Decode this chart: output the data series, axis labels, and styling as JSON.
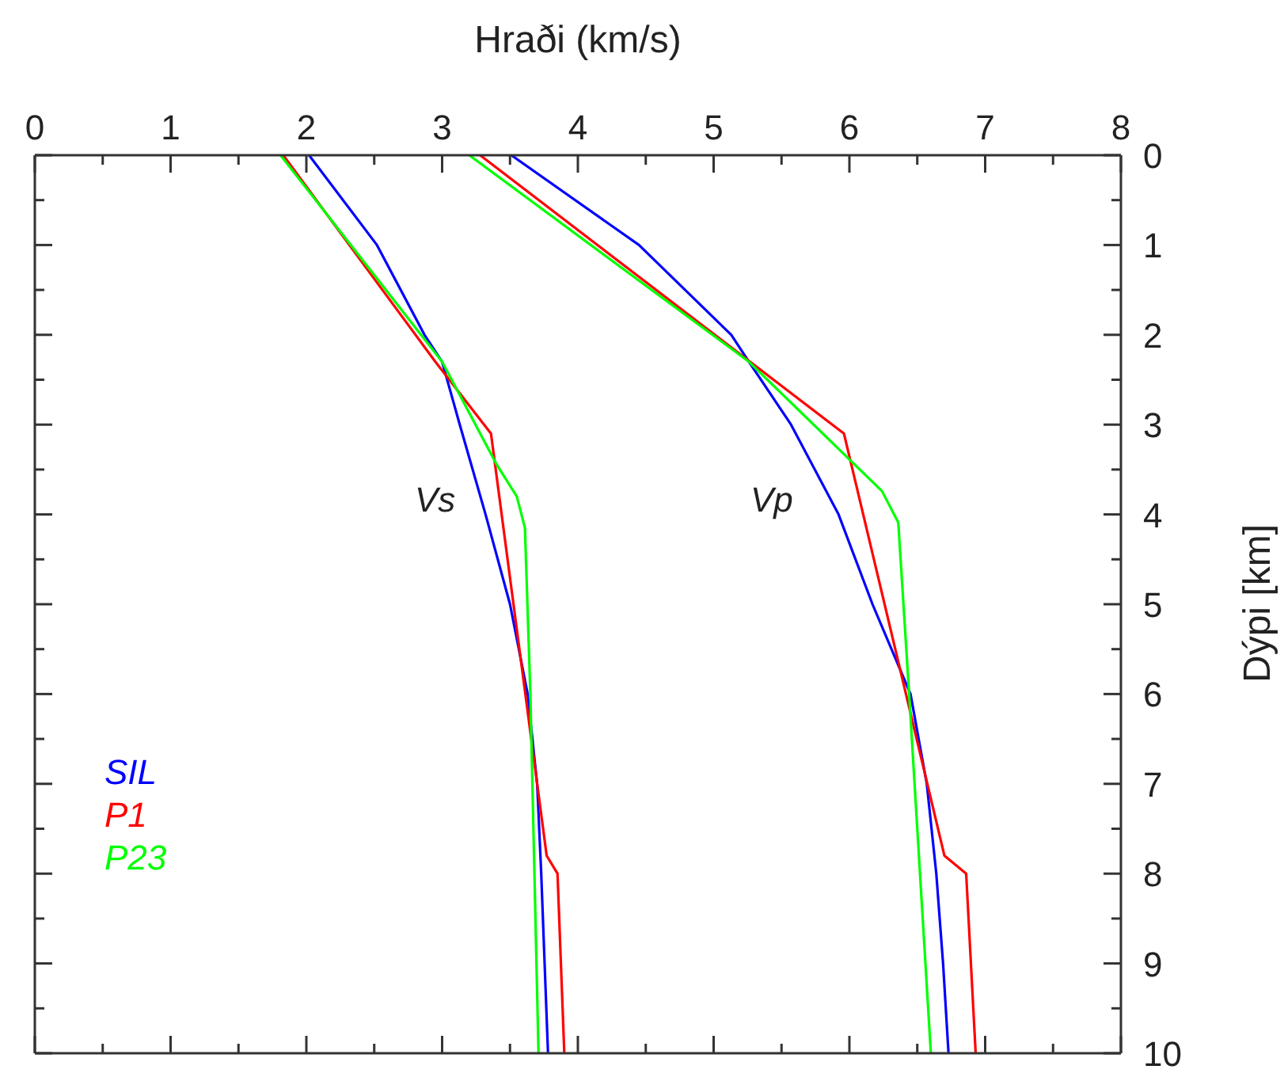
{
  "chart_data": {
    "type": "line",
    "xlabel": "Hraði (km/s)",
    "ylabel": "Dýpi [km]",
    "xlim": [
      0,
      8
    ],
    "ylim": [
      10,
      0
    ],
    "xticks": [
      0,
      {
        "value": 0.5,
        "label": null
      },
      1,
      {
        "value": 1.5,
        "label": null
      },
      2,
      {
        "value": 2.5,
        "label": null
      },
      3,
      {
        "value": 3.5,
        "label": null
      },
      4,
      {
        "value": 4.5,
        "label": null
      },
      5,
      {
        "value": 5.5,
        "label": null
      },
      6,
      {
        "value": 6.5,
        "label": null
      },
      7,
      {
        "value": 7.5,
        "label": null
      },
      8
    ],
    "yticks": [
      0,
      {
        "value": 0.5,
        "label": null
      },
      1,
      {
        "value": 1.5,
        "label": null
      },
      2,
      {
        "value": 2.5,
        "label": null
      },
      3,
      {
        "value": 3.5,
        "label": null
      },
      4,
      {
        "value": 4.5,
        "label": null
      },
      5,
      {
        "value": 5.5,
        "label": null
      },
      6,
      {
        "value": 6.5,
        "label": null
      },
      7,
      {
        "value": 7.5,
        "label": null
      },
      8,
      {
        "value": 8.5,
        "label": null
      },
      9,
      {
        "value": 9.5,
        "label": null
      },
      10
    ],
    "tick_labels": "xy",
    "legend": "bottom left",
    "series": [
      {
        "name": "SIL",
        "color": "#0000ff",
        "x": [
          2.02,
          2.52,
          2.87,
          3.0,
          3.13,
          3.32,
          3.5,
          3.63,
          3.7,
          3.73,
          3.78
        ],
        "values": [
          0,
          1,
          2,
          2.3,
          3,
          4,
          5,
          6,
          7,
          8,
          10
        ]
      },
      {
        "name": "P1",
        "color": "#ff0000",
        "x": [
          1.83,
          2.95,
          3.36,
          3.77,
          3.85,
          3.9
        ],
        "values": [
          0,
          2.3,
          3.1,
          7.8,
          8,
          10
        ]
      },
      {
        "name": "P23",
        "color": "#00ff00",
        "x": [
          1.81,
          3.0,
          3.4,
          3.55,
          3.61,
          3.65,
          3.71
        ],
        "values": [
          0,
          2.3,
          3.44,
          3.8,
          4.15,
          6,
          10
        ]
      },
      {
        "color": "#0000ff",
        "x": [
          3.51,
          4.45,
          5.13,
          5.26,
          5.57,
          5.92,
          6.17,
          6.45,
          6.57,
          6.64,
          6.69,
          6.73
        ],
        "values": [
          0,
          1,
          2,
          2.3,
          3,
          4,
          5,
          6,
          7,
          8,
          9,
          10
        ]
      },
      {
        "color": "#ff0000",
        "x": [
          3.28,
          5.96,
          6.7,
          6.86,
          6.93
        ],
        "values": [
          0,
          3.1,
          7.8,
          8,
          10
        ]
      },
      {
        "color": "#00ff00",
        "x": [
          3.2,
          5.26,
          6.24,
          6.36,
          6.44,
          6.6
        ],
        "values": [
          0,
          2.3,
          3.74,
          4.09,
          6,
          10
        ]
      }
    ],
    "annotations": [
      "Vs",
      "Vp"
    ]
  }
}
